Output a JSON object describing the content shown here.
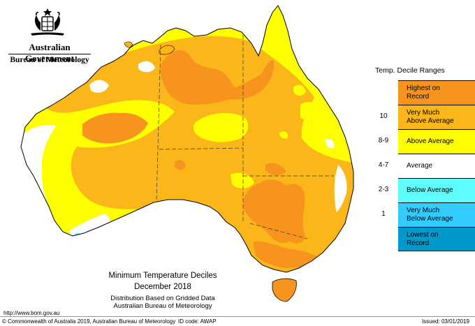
{
  "header": {
    "org": "Australian Government",
    "bureau": "Bureau of Meteorology",
    "crest_icon": "coat-of-arms-icon"
  },
  "map": {
    "title": "Minimum Temperature Deciles",
    "period": "December 2018",
    "basis": "Distribution Based on Gridded Data",
    "source": "Australian Bureau of Meteorology",
    "colors": {
      "highest": "#f7941d",
      "very_much_above": "#fbb61a",
      "above": "#ffff00",
      "average": "#ffffff",
      "below": "#5efcfc",
      "very_much_below": "#33ccff",
      "lowest": "#0099cc"
    },
    "dominant_category": "Very Much Above Average"
  },
  "legend": {
    "title": "Temp. Decile Ranges",
    "items": [
      {
        "class": "",
        "label_1": "Highest on",
        "label_2": "Record",
        "color": "#f7941d"
      },
      {
        "class": "10",
        "label_1": "Very Much",
        "label_2": "Above Average",
        "color": "#fbb61a"
      },
      {
        "class": "8-9",
        "label_1": "Above Average",
        "label_2": "",
        "color": "#ffff00"
      },
      {
        "class": "4-7",
        "label_1": "Average",
        "label_2": "",
        "color": "#ffffff"
      },
      {
        "class": "2-3",
        "label_1": "Below Average",
        "label_2": "",
        "color": "#5efcfc"
      },
      {
        "class": "1",
        "label_1": "Very Much",
        "label_2": "Below Average",
        "color": "#33ccff"
      },
      {
        "class": "",
        "label_1": "Lowest on",
        "label_2": "Record",
        "color": "#0099cc"
      }
    ]
  },
  "footer": {
    "url": "http://www.bom.gov.au",
    "copyright": "© Commonwealth of Australia 2019, Australian Bureau of Meteorology",
    "id_code": "ID code: AWAP",
    "issued": "Issued: 03/01/2019"
  }
}
